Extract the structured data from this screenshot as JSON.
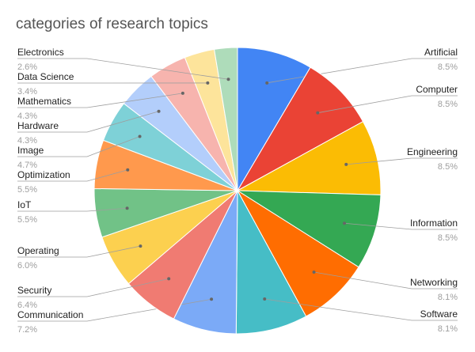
{
  "chart_data": {
    "type": "pie",
    "title": "categories of research topics",
    "slices": [
      {
        "label": "Artificial",
        "value": 8.5,
        "pct": "8.5%",
        "color": "#4285f4"
      },
      {
        "label": "Computer",
        "value": 8.5,
        "pct": "8.5%",
        "color": "#ea4335"
      },
      {
        "label": "Engineering",
        "value": 8.5,
        "pct": "8.5%",
        "color": "#fbbc04"
      },
      {
        "label": "Information",
        "value": 8.5,
        "pct": "8.5%",
        "color": "#34a853"
      },
      {
        "label": "Networking",
        "value": 8.1,
        "pct": "8.1%",
        "color": "#ff6d01"
      },
      {
        "label": "Software",
        "value": 8.1,
        "pct": "8.1%",
        "color": "#46bdc6"
      },
      {
        "label": "Communication",
        "value": 7.2,
        "pct": "7.2%",
        "color": "#7baaf7"
      },
      {
        "label": "Security",
        "value": 6.4,
        "pct": "6.4%",
        "color": "#f07b72"
      },
      {
        "label": "Operating",
        "value": 6.0,
        "pct": "6.0%",
        "color": "#fcd04f"
      },
      {
        "label": "IoT",
        "value": 5.5,
        "pct": "5.5%",
        "color": "#71c287"
      },
      {
        "label": "Optimization",
        "value": 5.5,
        "pct": "5.5%",
        "color": "#ff994d"
      },
      {
        "label": "Image",
        "value": 4.7,
        "pct": "4.7%",
        "color": "#7ed1d7"
      },
      {
        "label": "Hardware",
        "value": 4.3,
        "pct": "4.3%",
        "color": "#b3cefb"
      },
      {
        "label": "Mathematics",
        "value": 4.3,
        "pct": "4.3%",
        "color": "#f7b4ae"
      },
      {
        "label": "Data Science",
        "value": 3.4,
        "pct": "3.4%",
        "color": "#fde49b"
      },
      {
        "label": "Electronics",
        "value": 2.6,
        "pct": "2.6%",
        "color": "#aedcba"
      }
    ],
    "legend": "none"
  }
}
